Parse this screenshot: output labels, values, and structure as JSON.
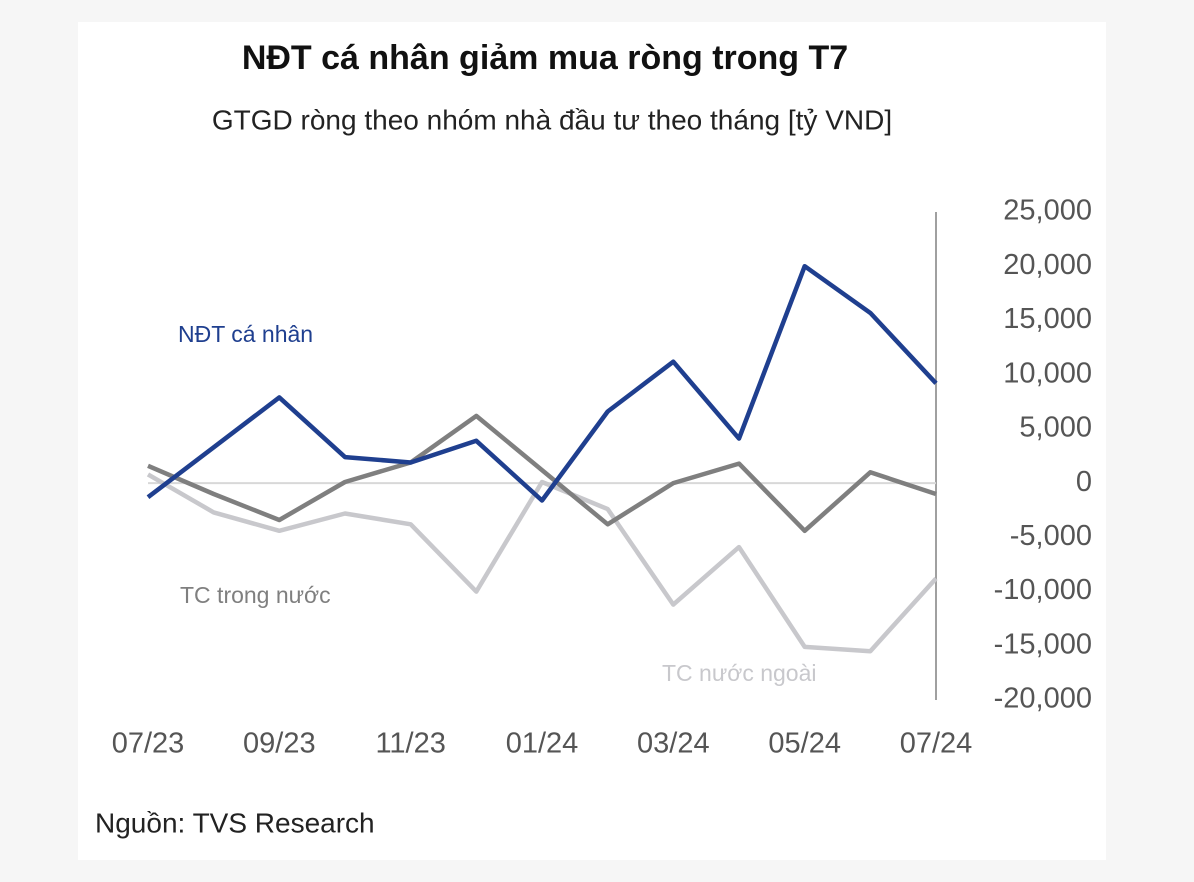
{
  "chart_data": {
    "type": "line",
    "title": "NĐT cá nhân giảm mua ròng trong T7",
    "subtitle": "GTGD ròng theo nhóm nhà đầu tư theo tháng [tỷ VND]",
    "source": "Nguồn: TVS Research",
    "categories": [
      "07/23",
      null,
      "09/23",
      null,
      "11/23",
      null,
      "01/24",
      null,
      "03/24",
      null,
      "05/24",
      null,
      "07/24"
    ],
    "ylim": [
      -20000,
      25000
    ],
    "yticks": [
      {
        "value": 25000,
        "label": "25,000"
      },
      {
        "value": 20000,
        "label": "20,000"
      },
      {
        "value": 15000,
        "label": "15,000"
      },
      {
        "value": 10000,
        "label": "10,000"
      },
      {
        "value": 5000,
        "label": "5,000"
      },
      0,
      {
        "value": -5000,
        "label": "-5,000"
      },
      {
        "value": -10000,
        "label": "-10,000"
      },
      {
        "value": -15000,
        "label": "-15,000"
      },
      {
        "value": -20000,
        "label": "-20,000"
      }
    ],
    "series": [
      {
        "name": "NĐT cá nhân",
        "color": "#1f3f8f",
        "values": [
          -1300,
          3300,
          7900,
          2400,
          1900,
          3900,
          -1600,
          6600,
          11200,
          4100,
          20000,
          15700,
          9200
        ]
      },
      {
        "name": "TC trong nước",
        "color": "#7f7f7f",
        "values": [
          1600,
          -1000,
          -3400,
          100,
          1900,
          6200,
          1200,
          -3800,
          0,
          1800,
          -4400,
          1000,
          -1000
        ]
      },
      {
        "name": "TC nước ngoài",
        "color": "#c8c8cc",
        "values": [
          800,
          -2700,
          -4400,
          -2800,
          -3800,
          -10000,
          100,
          -2400,
          -11200,
          -5900,
          -15100,
          -15500,
          -8800
        ]
      }
    ]
  }
}
